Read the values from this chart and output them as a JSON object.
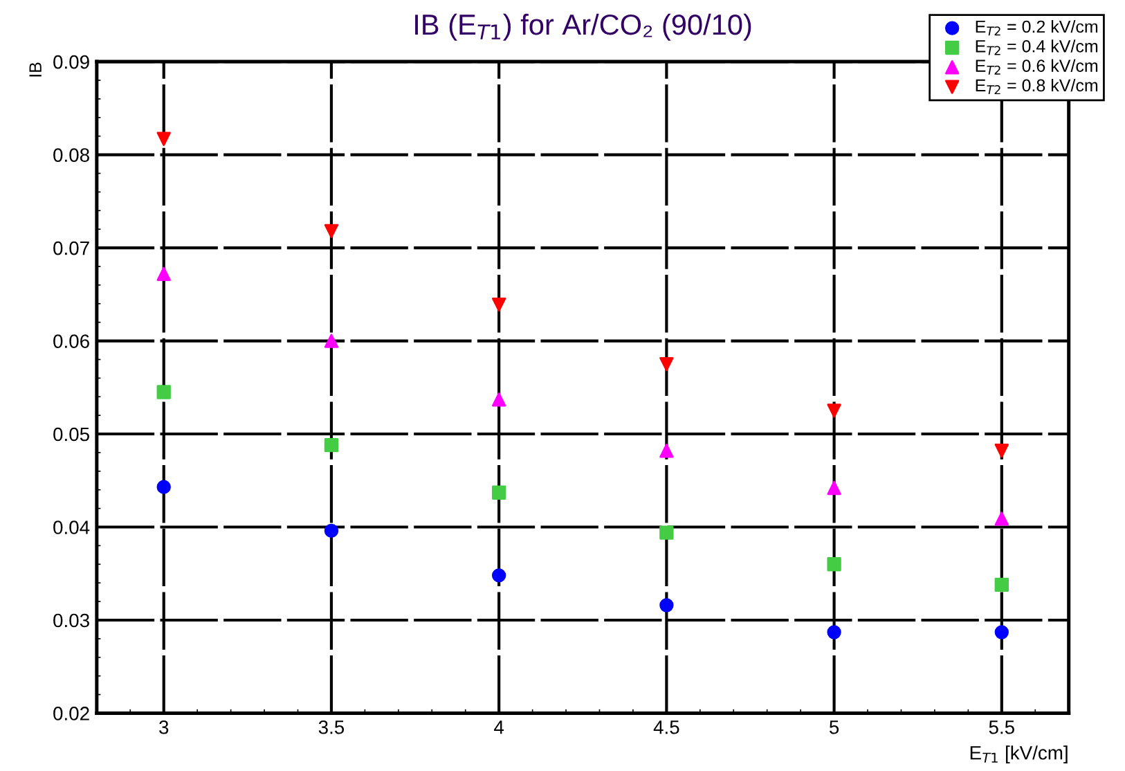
{
  "chart_data": {
    "type": "scatter",
    "title": "IB (E$_{T1}$) for Ar/CO₂ (90/10)",
    "xlabel": "E$_{T1}$ [kV/cm]",
    "ylabel": "IB",
    "x": [
      3,
      3.5,
      4,
      4.5,
      5,
      5.5
    ],
    "xlim": [
      2.8,
      5.7
    ],
    "xticks": [
      3,
      3.5,
      4,
      4.5,
      5,
      5.5
    ],
    "ylim": [
      0.02,
      0.09
    ],
    "yticks": [
      0.02,
      0.03,
      0.04,
      0.05,
      0.06,
      0.07,
      0.08,
      0.09
    ],
    "grid": true,
    "legend": "top right",
    "series": [
      {
        "name": "E$_{T2}$ = 0.2 kV/cm",
        "color": "#0000ff",
        "marker": "circle",
        "values": [
          0.0443,
          0.0396,
          0.0348,
          0.0316,
          0.0287,
          0.0287
        ]
      },
      {
        "name": "E$_{T2}$ = 0.4 kV/cm",
        "color": "#44cc44",
        "marker": "square",
        "values": [
          0.0545,
          0.0488,
          0.0437,
          0.0394,
          0.036,
          0.0338
        ]
      },
      {
        "name": "E$_{T2}$ = 0.6 kV/cm",
        "color": "#ff00ff",
        "marker": "triangle",
        "values": [
          0.0672,
          0.06,
          0.0537,
          0.0482,
          0.0442,
          0.0409
        ]
      },
      {
        "name": "E$_{T2}$ = 0.8 kV/cm",
        "color": "#ff0000",
        "marker": "triangle_down",
        "values": [
          0.0817,
          0.0718,
          0.0639,
          0.0575,
          0.0525,
          0.0482
        ]
      }
    ]
  }
}
